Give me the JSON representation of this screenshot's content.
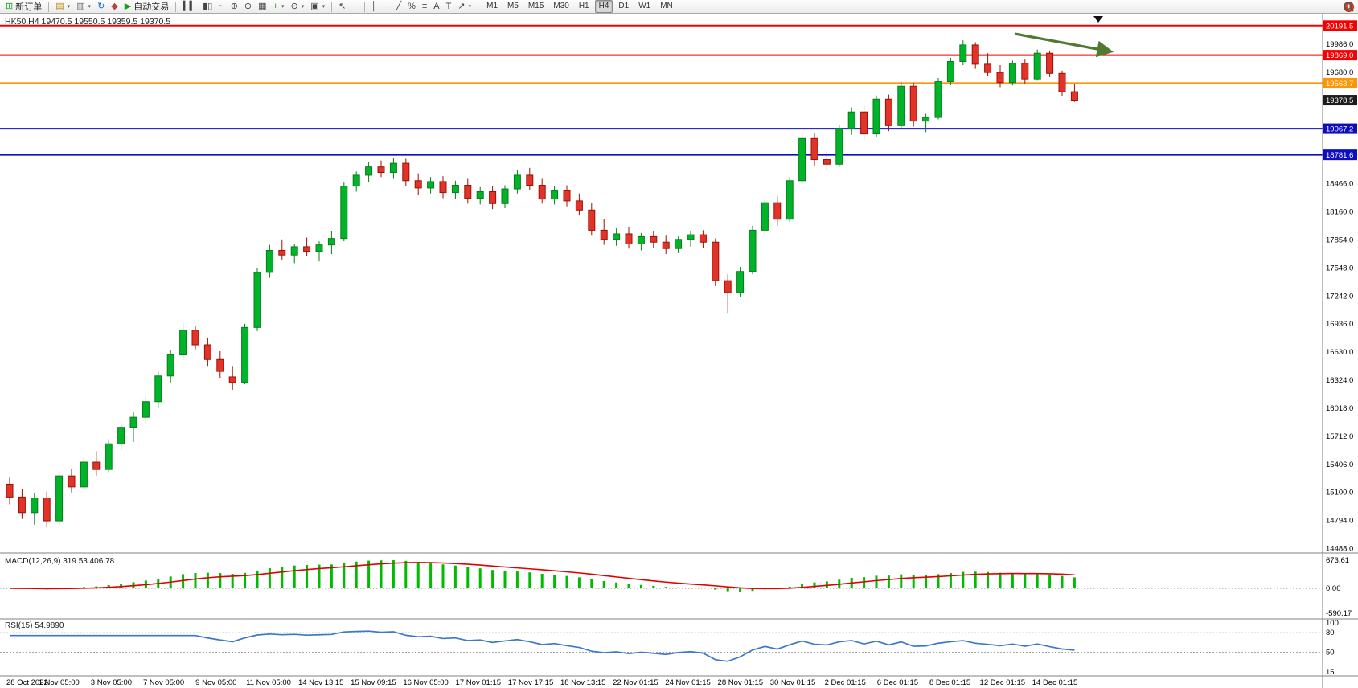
{
  "toolbar": {
    "notification": "1",
    "timeframes": {
      "items": [
        "M1",
        "M5",
        "M15",
        "M30",
        "H1",
        "H4",
        "D1",
        "W1",
        "MN"
      ],
      "active": "H4"
    },
    "groups": [
      {
        "name": "orders",
        "items": [
          {
            "name": "new-order-button",
            "glyph": "⊞",
            "color": "#2e9b2e",
            "label": "新订单"
          }
        ]
      },
      {
        "name": "windows",
        "items": [
          {
            "name": "new-chart-button",
            "glyph": "▤",
            "color": "#b8860b",
            "dropdown": true
          },
          {
            "name": "profiles-button",
            "glyph": "▥",
            "color": "#6b6b6b",
            "dropdown": true
          },
          {
            "name": "refresh-button",
            "glyph": "↻",
            "color": "#1a6fb5"
          },
          {
            "name": "favorites-button",
            "glyph": "◆",
            "color": "#c04040"
          },
          {
            "name": "auto-trading-button",
            "glyph": "▶",
            "color": "#18a018",
            "label": "自动交易"
          }
        ]
      },
      {
        "name": "chart-controls",
        "items": [
          {
            "name": "bar-chart-button",
            "glyph": "▍▍",
            "color": "#444444"
          },
          {
            "name": "candlestick-chart-button",
            "glyph": "▮▯",
            "color": "#444444"
          },
          {
            "name": "line-chart-button",
            "glyph": "~",
            "color": "#444444"
          },
          {
            "name": "zoom-in-button",
            "glyph": "⊕",
            "color": "#444444"
          },
          {
            "name": "zoom-out-button",
            "glyph": "⊖",
            "color": "#444444"
          },
          {
            "name": "tile-windows-button",
            "glyph": "▦",
            "color": "#444444"
          },
          {
            "name": "indicators-button",
            "glyph": "+",
            "color": "#18a018",
            "dropdown": true
          },
          {
            "name": "periods-button",
            "glyph": "⊙",
            "color": "#444444",
            "dropdown": true
          },
          {
            "name": "templates-button",
            "glyph": "▣",
            "color": "#444444",
            "dropdown": true
          }
        ]
      },
      {
        "name": "cursor-tools",
        "items": [
          {
            "name": "cursor-button",
            "glyph": "↖",
            "color": "#444444"
          },
          {
            "name": "crosshair-button",
            "glyph": "+",
            "color": "#444444"
          }
        ]
      },
      {
        "name": "object-tools",
        "items": [
          {
            "name": "vertical-line-button",
            "glyph": "│",
            "color": "#444444"
          },
          {
            "name": "horizontal-line-button",
            "glyph": "─",
            "color": "#444444"
          },
          {
            "name": "trendline-button",
            "glyph": "╱",
            "color": "#444444"
          },
          {
            "name": "equidistant-channel-button",
            "glyph": "%",
            "color": "#444444"
          },
          {
            "name": "fibonacci-button",
            "glyph": "≡",
            "color": "#444444"
          },
          {
            "name": "text-button",
            "glyph": "A",
            "color": "#444444"
          },
          {
            "name": "text-label-button",
            "glyph": "T",
            "color": "#444444"
          },
          {
            "name": "arrows-button",
            "glyph": "↗",
            "color": "#444444",
            "dropdown": true
          }
        ]
      }
    ]
  },
  "chart": {
    "title": "HK50,H4 19470.5 19550.5 19359.5 19370.5",
    "symbol": "HK50",
    "period": "H4",
    "axis_labels": [
      "19986.0",
      "19680.0",
      "18466.0",
      "18160.0",
      "17854.0",
      "17548.0",
      "17242.0",
      "16936.0",
      "16630.0",
      "16324.0",
      "16018.0",
      "15712.0",
      "15406.0",
      "15100.0",
      "14794.0",
      "14488.0"
    ],
    "lines": [
      {
        "name": "resistance-line-upper",
        "price": 20191.5,
        "label": "20191.5",
        "color_key": "line_red",
        "badge": "#f50000",
        "width": 2
      },
      {
        "name": "resistance-line",
        "price": 19869.0,
        "label": "19869.0",
        "color_key": "line_red",
        "badge": "#f50000",
        "width": 2
      },
      {
        "name": "orange-level-line",
        "price": 19563.7,
        "label": "19563.7",
        "color_key": "line_orange",
        "badge": "#ff9500",
        "width": 2
      },
      {
        "name": "bid-price-line",
        "price": 19378.5,
        "label": "19378.5",
        "color_key": "bid_line",
        "badge": "#1d1d1d",
        "width": 1
      },
      {
        "name": "support-line",
        "price": 19067.2,
        "label": "19067.2",
        "color_key": "line_blue",
        "badge": "#0d0dc0",
        "width": 2
      },
      {
        "name": "support-line-lower",
        "price": 18781.6,
        "label": "18781.6",
        "color_key": "line_blue",
        "badge": "#0d0dc0",
        "width": 2
      }
    ],
    "time_labels": [
      "28 Oct 2022",
      "1 Nov 05:00",
      "3 Nov 05:00",
      "7 Nov 05:00",
      "9 Nov 05:00",
      "11 Nov 05:00",
      "14 Nov 13:15",
      "15 Nov 09:15",
      "16 Nov 05:00",
      "17 Nov 01:15",
      "17 Nov 17:15",
      "18 Nov 13:15",
      "22 Nov 01:15",
      "24 Nov 01:15",
      "28 Nov 01:15",
      "30 Nov 01:15",
      "2 Dec 01:15",
      "6 Dec 01:15",
      "8 Dec 01:15",
      "12 Dec 01:15",
      "14 Dec 01:15"
    ]
  },
  "chart_data": {
    "type": "candlestick",
    "symbol": "HK50",
    "timeframe": "H4",
    "ohlc_current": {
      "open": 19470.5,
      "high": 19550.5,
      "low": 19359.5,
      "close": 19370.5
    },
    "horizontal_levels": [
      20191.5,
      19869.0,
      19563.7,
      19378.5,
      19067.2,
      18781.6
    ],
    "candles": [
      [
        15190,
        15260,
        14970,
        15050
      ],
      [
        15050,
        15140,
        14810,
        14880
      ],
      [
        14880,
        15090,
        14750,
        15040
      ],
      [
        15040,
        15110,
        14720,
        14790
      ],
      [
        14790,
        15330,
        14730,
        15280
      ],
      [
        15280,
        15360,
        15100,
        15160
      ],
      [
        15160,
        15490,
        15130,
        15430
      ],
      [
        15430,
        15550,
        15280,
        15350
      ],
      [
        15350,
        15680,
        15320,
        15630
      ],
      [
        15630,
        15860,
        15560,
        15810
      ],
      [
        15810,
        15980,
        15650,
        15920
      ],
      [
        15920,
        16150,
        15840,
        16090
      ],
      [
        16090,
        16420,
        16020,
        16370
      ],
      [
        16370,
        16650,
        16300,
        16600
      ],
      [
        16600,
        16950,
        16540,
        16870
      ],
      [
        16870,
        16920,
        16660,
        16710
      ],
      [
        16710,
        16790,
        16480,
        16550
      ],
      [
        16550,
        16640,
        16350,
        16420
      ],
      [
        16360,
        16480,
        16220,
        16300
      ],
      [
        16300,
        16940,
        16280,
        16900
      ],
      [
        16900,
        17550,
        16860,
        17500
      ],
      [
        17500,
        17800,
        17440,
        17740
      ],
      [
        17740,
        17860,
        17640,
        17690
      ],
      [
        17690,
        17810,
        17600,
        17780
      ],
      [
        17780,
        17880,
        17680,
        17730
      ],
      [
        17730,
        17840,
        17620,
        17800
      ],
      [
        17800,
        17950,
        17700,
        17870
      ],
      [
        17870,
        18480,
        17840,
        18440
      ],
      [
        18440,
        18600,
        18380,
        18560
      ],
      [
        18560,
        18700,
        18480,
        18650
      ],
      [
        18650,
        18720,
        18540,
        18590
      ],
      [
        18590,
        18750,
        18520,
        18690
      ],
      [
        18690,
        18740,
        18440,
        18500
      ],
      [
        18500,
        18580,
        18340,
        18420
      ],
      [
        18420,
        18540,
        18360,
        18490
      ],
      [
        18490,
        18550,
        18310,
        18370
      ],
      [
        18370,
        18500,
        18300,
        18450
      ],
      [
        18450,
        18520,
        18250,
        18310
      ],
      [
        18310,
        18430,
        18240,
        18380
      ],
      [
        18380,
        18440,
        18190,
        18250
      ],
      [
        18250,
        18450,
        18200,
        18410
      ],
      [
        18410,
        18620,
        18360,
        18560
      ],
      [
        18560,
        18640,
        18400,
        18450
      ],
      [
        18450,
        18520,
        18250,
        18300
      ],
      [
        18300,
        18440,
        18240,
        18390
      ],
      [
        18390,
        18450,
        18220,
        18280
      ],
      [
        18280,
        18360,
        18120,
        18180
      ],
      [
        18180,
        18260,
        17900,
        17960
      ],
      [
        17960,
        18080,
        17800,
        17860
      ],
      [
        17860,
        17980,
        17790,
        17920
      ],
      [
        17920,
        17990,
        17760,
        17810
      ],
      [
        17810,
        17930,
        17740,
        17890
      ],
      [
        17890,
        17950,
        17770,
        17830
      ],
      [
        17830,
        17900,
        17700,
        17760
      ],
      [
        17760,
        17890,
        17710,
        17860
      ],
      [
        17860,
        17950,
        17780,
        17910
      ],
      [
        17910,
        17960,
        17770,
        17830
      ],
      [
        17830,
        17870,
        17350,
        17410
      ],
      [
        17410,
        17480,
        17050,
        17280
      ],
      [
        17280,
        17560,
        17230,
        17510
      ],
      [
        17510,
        18010,
        17480,
        17960
      ],
      [
        17960,
        18300,
        17900,
        18260
      ],
      [
        18260,
        18330,
        18010,
        18080
      ],
      [
        18080,
        18540,
        18050,
        18500
      ],
      [
        18500,
        19010,
        18470,
        18960
      ],
      [
        18960,
        19020,
        18660,
        18730
      ],
      [
        18730,
        18820,
        18620,
        18680
      ],
      [
        18680,
        19110,
        18650,
        19070
      ],
      [
        19070,
        19300,
        19000,
        19250
      ],
      [
        19250,
        19310,
        18950,
        19010
      ],
      [
        19010,
        19430,
        18980,
        19390
      ],
      [
        19390,
        19440,
        19040,
        19100
      ],
      [
        19100,
        19580,
        19070,
        19530
      ],
      [
        19530,
        19570,
        19090,
        19150
      ],
      [
        19150,
        19230,
        19030,
        19190
      ],
      [
        19190,
        19620,
        19170,
        19580
      ],
      [
        19580,
        19840,
        19540,
        19800
      ],
      [
        19800,
        20030,
        19760,
        19980
      ],
      [
        19980,
        20010,
        19720,
        19770
      ],
      [
        19770,
        19890,
        19640,
        19680
      ],
      [
        19680,
        19760,
        19520,
        19570
      ],
      [
        19570,
        19810,
        19540,
        19780
      ],
      [
        19780,
        19820,
        19560,
        19610
      ],
      [
        19610,
        19930,
        19590,
        19890
      ],
      [
        19890,
        19920,
        19630,
        19670
      ],
      [
        19670,
        19700,
        19420,
        19470
      ],
      [
        19470.5,
        19550.5,
        19359.5,
        19370.5
      ]
    ],
    "indicators": [
      {
        "type": "macd",
        "display": "MACD(12,26,9) 319.53 406.78",
        "params": [
          12,
          26,
          9
        ],
        "values": [
          319.53,
          406.78
        ],
        "axis": [
          "673.61",
          "0.00",
          "-590.17"
        ]
      },
      {
        "type": "rsi",
        "display": "RSI(15) 54.9890",
        "params": [
          15
        ],
        "value": 54.989,
        "axis": [
          "100",
          "80",
          "50",
          "15"
        ],
        "levels": [
          80,
          50
        ]
      }
    ],
    "annotations": [
      {
        "type": "arrow",
        "name": "trend-arrow",
        "color": "#4e7b2f",
        "direction": "down-right"
      }
    ]
  },
  "colors": {
    "up": "#00b42a",
    "up_border": "#077d1c",
    "down": "#e23328",
    "down_border": "#9c1006",
    "macd_hist": "#00bb00",
    "macd_signal": "#e00000",
    "rsi": "#3c78c8",
    "line_red": "#f50000",
    "line_orange": "#ff9500",
    "line_blue": "#0d0dc0",
    "bid_line": "#3a3a3a",
    "arrow": "#4e7b2f"
  }
}
